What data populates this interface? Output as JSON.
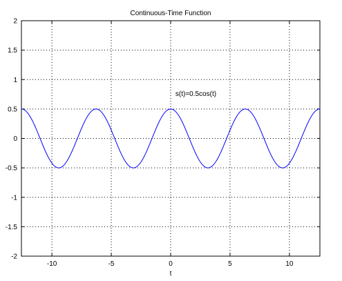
{
  "chart_data": {
    "type": "line",
    "title": "Continuous-Time Function",
    "xlabel": "t",
    "ylabel": "",
    "xlim": [
      -12.566,
      12.566
    ],
    "ylim": [
      -2,
      2
    ],
    "xticks": [
      -10,
      -5,
      0,
      5,
      10
    ],
    "yticks": [
      -2,
      -1.5,
      -1,
      -0.5,
      0,
      0.5,
      1,
      1.5,
      2
    ],
    "xtick_labels": [
      "-10",
      "-5",
      "0",
      "5",
      "10"
    ],
    "ytick_labels": [
      "-2",
      "-1.5",
      "-1",
      "-0.5",
      "0",
      "0.5",
      "1",
      "1.5",
      "2"
    ],
    "grid": true,
    "series": [
      {
        "function": "0.5*cos(t)",
        "color": "#0000ff",
        "x_range": [
          -12.566,
          12.566
        ],
        "peaks": [
          [
            -12.566,
            0.5
          ],
          [
            -6.283,
            0.5
          ],
          [
            0,
            0.5
          ],
          [
            6.283,
            0.5
          ],
          [
            12.566,
            0.5
          ]
        ],
        "troughs": [
          [
            -9.425,
            -0.5
          ],
          [
            -3.142,
            -0.5
          ],
          [
            3.142,
            -0.5
          ],
          [
            9.425,
            -0.5
          ]
        ]
      }
    ],
    "annotations": [
      {
        "text": "s(t)=0.5cos(t)",
        "x": 0.4,
        "y": 0.72
      }
    ]
  }
}
